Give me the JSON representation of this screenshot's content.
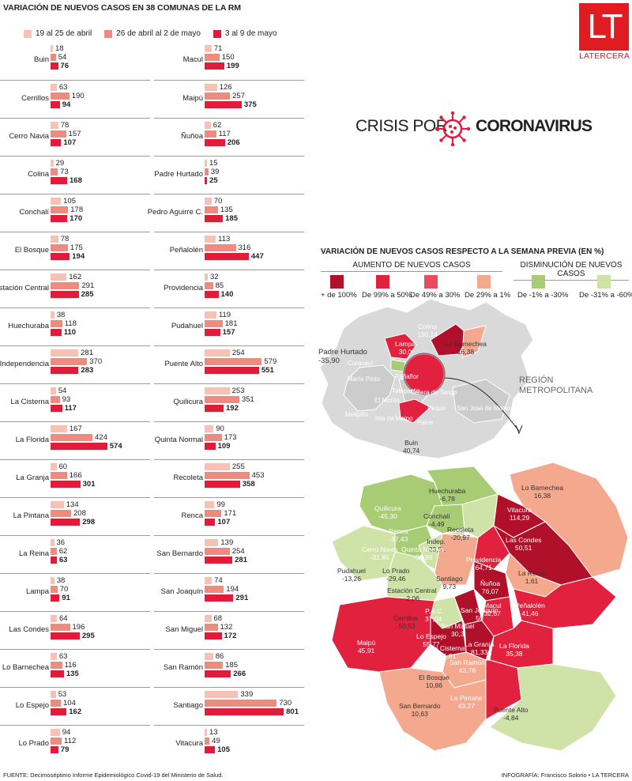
{
  "title": "VARIACIÓN DE NUEVOS CASOS EN 38 COMUNAS DE LA RM",
  "legend": [
    "19 al 25 de abril",
    "26 de abril al 2 de mayo",
    "3 al 9 de mayo"
  ],
  "colors": {
    "w1": "#f6c2b8",
    "w2": "#ef8a7e",
    "w3": "#e11b3a",
    "pos1": "#b0102a",
    "pos2": "#e1213e",
    "pos3": "#e94c5e",
    "pos4": "#f4a98f",
    "neg1": "#a8cc73",
    "neg2": "#cfe3a8"
  },
  "chart_data": {
    "type": "bar",
    "orientation": "horizontal",
    "series_names": [
      "19 al 25 de abril",
      "26 de abril al 2 de mayo",
      "3 al 9 de mayo"
    ],
    "left": [
      {
        "name": "Buin",
        "values": [
          18,
          54,
          76
        ]
      },
      {
        "name": "Cerrillos",
        "values": [
          63,
          190,
          94
        ]
      },
      {
        "name": "Cerro Navia",
        "values": [
          78,
          157,
          107
        ]
      },
      {
        "name": "Colina",
        "values": [
          29,
          73,
          168
        ]
      },
      {
        "name": "Conchalí",
        "values": [
          105,
          178,
          170
        ]
      },
      {
        "name": "El Bosque",
        "values": [
          78,
          175,
          194
        ]
      },
      {
        "name": "Estación Central",
        "values": [
          162,
          291,
          285
        ]
      },
      {
        "name": "Huechuraba",
        "values": [
          38,
          118,
          110
        ]
      },
      {
        "name": "Independencia",
        "values": [
          281,
          370,
          283
        ]
      },
      {
        "name": "La Cisterna",
        "values": [
          54,
          93,
          117
        ]
      },
      {
        "name": "La Florida",
        "values": [
          167,
          424,
          574
        ]
      },
      {
        "name": "La Granja",
        "values": [
          60,
          166,
          301
        ]
      },
      {
        "name": "La Pintana",
        "values": [
          134,
          208,
          298
        ]
      },
      {
        "name": "La Reina",
        "values": [
          36,
          62,
          63
        ]
      },
      {
        "name": "Lampa",
        "values": [
          38,
          70,
          91
        ]
      },
      {
        "name": "Las Condes",
        "values": [
          64,
          196,
          295
        ]
      },
      {
        "name": "Lo Barnechea",
        "values": [
          63,
          116,
          135
        ]
      },
      {
        "name": "Lo Espejo",
        "values": [
          53,
          104,
          162
        ]
      },
      {
        "name": "Lo Prado",
        "values": [
          94,
          112,
          79
        ]
      }
    ],
    "right": [
      {
        "name": "Macul",
        "values": [
          71,
          150,
          199
        ]
      },
      {
        "name": "Maipú",
        "values": [
          126,
          257,
          375
        ]
      },
      {
        "name": "Ñuñoa",
        "values": [
          62,
          117,
          206
        ]
      },
      {
        "name": "Padre Hurtado",
        "values": [
          15,
          39,
          25
        ]
      },
      {
        "name": "Pedro Aguirre C.",
        "values": [
          70,
          135,
          185
        ]
      },
      {
        "name": "Peñalolén",
        "values": [
          113,
          316,
          447
        ]
      },
      {
        "name": "Providencia",
        "values": [
          32,
          85,
          140
        ]
      },
      {
        "name": "Pudahuel",
        "values": [
          119,
          181,
          157
        ]
      },
      {
        "name": "Puente Alto",
        "values": [
          254,
          579,
          551
        ]
      },
      {
        "name": "Quilicura",
        "values": [
          253,
          351,
          192
        ]
      },
      {
        "name": "Quinta Normal",
        "values": [
          90,
          173,
          109
        ]
      },
      {
        "name": "Recoleta",
        "values": [
          255,
          453,
          358
        ]
      },
      {
        "name": "Renca",
        "values": [
          99,
          171,
          107
        ]
      },
      {
        "name": "San Bernardo",
        "values": [
          139,
          254,
          281
        ]
      },
      {
        "name": "San Joaquín",
        "values": [
          74,
          194,
          291
        ]
      },
      {
        "name": "San Miguel",
        "values": [
          68,
          132,
          172
        ]
      },
      {
        "name": "San Ramón",
        "values": [
          86,
          185,
          266
        ]
      },
      {
        "name": "Santiago",
        "values": [
          339,
          730,
          801
        ]
      },
      {
        "name": "Vitacura",
        "values": [
          13,
          49,
          105
        ]
      }
    ]
  },
  "logo": {
    "mark": "LT",
    "name": "LATERCERA"
  },
  "crisis": {
    "pre": "CRISIS POR",
    "post": "CORONAVIRUS"
  },
  "map": {
    "title": "VARIACIÓN DE NUEVOS CASOS RESPECTO A LA SEMANA PREVIA (EN %)",
    "increase_title": "AUMENTO DE NUEVOS CASOS",
    "decrease_title": "DISMINUCIÓN DE NUEVOS CASOS",
    "legend": [
      "+ de 100%",
      "De 99% a 50%",
      "De 49% a 30%",
      "De 29% a 1%",
      "De -1% a -30%",
      "De -31% a -60%"
    ],
    "region_label": "REGIÓN METROPOLITANA",
    "padre_hurtado": "Padre Hurtado",
    "padre_hurtado_val": "-35,90",
    "labels": [
      {
        "name": "Colina",
        "value": "130,14"
      },
      {
        "name": "Lampa",
        "value": "30,0"
      },
      {
        "name": "Lo Barnechea",
        "value": "16,38"
      },
      {
        "name": "Buin",
        "value": "40,74"
      },
      {
        "name": "Lo Barnechea",
        "value": "16,38"
      },
      {
        "name": "Huechuraba",
        "value": "-6,78"
      },
      {
        "name": "Quilicura",
        "value": "-45,30"
      },
      {
        "name": "Conchalí",
        "value": "-4,49"
      },
      {
        "name": "Vitacura",
        "value": "114,29"
      },
      {
        "name": "Renca",
        "value": "-37,43"
      },
      {
        "name": "Recoleta",
        "value": "-20,97"
      },
      {
        "name": "Indep.",
        "value": "-23,51"
      },
      {
        "name": "Las Condes",
        "value": "50,51"
      },
      {
        "name": "Cerro Navia",
        "value": "-31,85"
      },
      {
        "name": "Quinta Normal",
        "value": "-36,99"
      },
      {
        "name": "Providencia",
        "value": "64,71"
      },
      {
        "name": "Pudahuel",
        "value": "-13,26"
      },
      {
        "name": "Lo Prado",
        "value": "-29,46"
      },
      {
        "name": "Santiago",
        "value": "9,73"
      },
      {
        "name": "La Reina",
        "value": "1,61"
      },
      {
        "name": "Ñuñoa",
        "value": "76,07"
      },
      {
        "name": "Estación Central",
        "value": "-2,06"
      },
      {
        "name": "P.A.C",
        "value": "37,04"
      },
      {
        "name": "Macul",
        "value": "32,67"
      },
      {
        "name": "Peñalolén",
        "value": "41,46"
      },
      {
        "name": "Cerrillos",
        "value": "-50,53"
      },
      {
        "name": "San Joaquín",
        "value": "50"
      },
      {
        "name": "San Miguel",
        "value": "30,3"
      },
      {
        "name": "Lo Espejo",
        "value": "55,77"
      },
      {
        "name": "La Cisterna",
        "value": "25,81"
      },
      {
        "name": "La Granja",
        "value": "81,33"
      },
      {
        "name": "San Ramón",
        "value": "43,78"
      },
      {
        "name": "La Florida",
        "value": "35,38"
      },
      {
        "name": "Maipú",
        "value": "45,91"
      },
      {
        "name": "El Bosque",
        "value": "10,86"
      },
      {
        "name": "San Bernardo",
        "value": "10,63"
      },
      {
        "name": "La Pintana",
        "value": "43,27"
      },
      {
        "name": "Puente Alto",
        "value": "-4,84"
      }
    ],
    "region_names": [
      "Til Til",
      "Curacaví",
      "María Pinto",
      "Melipilla",
      "El Monte",
      "Isla de Maipo",
      "Talagante",
      "Peñaflor",
      "Pirque",
      "San José de Maipo",
      "San Pedro",
      "Alhué",
      "Paine",
      "Calera de Tango"
    ]
  },
  "footer": {
    "left": "FUENTE: Decimoséptimo Informe Epidemiológico Covid-19 del Ministerio de Salud.",
    "right": "INFOGRAFÍA: Francisco Solorio • LA TERCERA"
  }
}
